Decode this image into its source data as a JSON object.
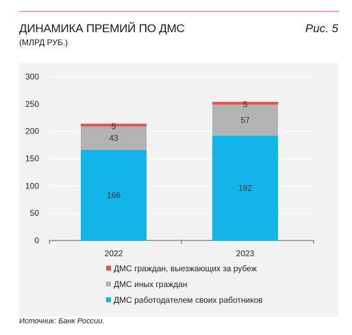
{
  "header": {
    "title": "ДИНАМИКА ПРЕМИЙ ПО ДМС",
    "subtitle": "(МЛРД РУБ.)",
    "figure_label": "Рис. 5"
  },
  "source": "Источник: Банк России.",
  "colors": {
    "accent_rule": "#e8736e",
    "employer": "#12b5ea",
    "other": "#b3b3b3",
    "abroad": "#e8504a"
  },
  "chart_data": {
    "type": "bar",
    "stacked": true,
    "title": "ДИНАМИКА ПРЕМИЙ ПО ДМС",
    "subtitle": "(МЛРД РУБ.)",
    "categories": [
      "2022",
      "2023"
    ],
    "series": [
      {
        "name": "ДМС работодателем своих работников",
        "values": [
          166,
          192
        ],
        "color": "#12b5ea"
      },
      {
        "name": "ДМС иных граждан",
        "values": [
          43,
          57
        ],
        "color": "#b3b3b3"
      },
      {
        "name": "ДМС граждан, выезжающих за рубеж",
        "values": [
          5,
          5
        ],
        "color": "#e8504a"
      }
    ],
    "ylim": [
      0,
      300
    ],
    "yticks": [
      0,
      50,
      100,
      150,
      200,
      250,
      300
    ],
    "grid": true,
    "legend": "bottom",
    "legend_order": [
      "ДМС граждан, выезжающих за рубеж",
      "ДМС иных граждан",
      "ДМС работодателем своих работников"
    ],
    "xlabel": "",
    "ylabel": ""
  }
}
